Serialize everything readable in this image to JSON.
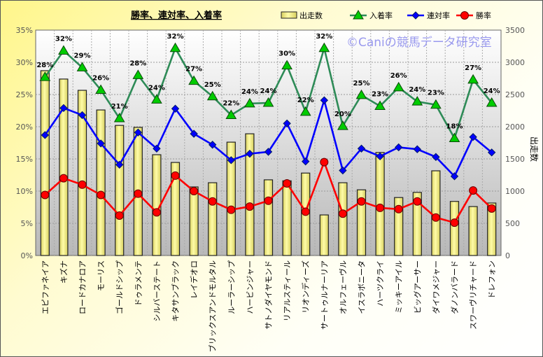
{
  "chart_data": {
    "type": "bar+line",
    "title": "勝率、連対率、入着率",
    "watermark": "©Caniの競馬データ研究室",
    "categories": [
      "エピファネイア",
      "キズナ",
      "ロードカナロア",
      "モーリス",
      "ゴールドシップ",
      "ドゥラメンテ",
      "シルバーステート",
      "キタサンブラック",
      "レイデオロ",
      "ブリックスアンドモルタル",
      "ルーラーシップ",
      "ハービンジャー",
      "サトノダイヤモンド",
      "リアルスティール",
      "リオンディーズ",
      "サートゥルナーリア",
      "オルフェーヴル",
      "イスラボニータ",
      "ハーツクライ",
      "ミッキーアイル",
      "ビッグアーサー",
      "ダイワメジャー",
      "ダノンバラード",
      "スワーヴリチャード",
      "ドレフォン"
    ],
    "y_left": {
      "label": "",
      "range": [
        0,
        35
      ],
      "ticks": [
        "0%",
        "5%",
        "10%",
        "15%",
        "20%",
        "25%",
        "30%",
        "35%"
      ]
    },
    "y_right": {
      "label": "出走数",
      "range": [
        0,
        3500
      ],
      "ticks": [
        "0",
        "500",
        "1000",
        "1500",
        "2000",
        "2500",
        "3000",
        "3500"
      ]
    },
    "legend": [
      "出走数",
      "入着率",
      "連対率",
      "勝率"
    ],
    "legend_position": "top-right",
    "grid": true,
    "series": [
      {
        "name": "出走数",
        "type": "bar",
        "axis": "right",
        "color": "#f5f08a",
        "values": [
          2870,
          2740,
          2565,
          2260,
          2020,
          1990,
          1565,
          1445,
          1065,
          1130,
          1760,
          1890,
          1175,
          1160,
          1280,
          630,
          1130,
          1020,
          1600,
          900,
          980,
          1315,
          840,
          760,
          815
        ]
      },
      {
        "name": "入着率",
        "type": "line",
        "axis": "left",
        "color": "#2e8b57",
        "marker": "triangle",
        "marker_color": "#00cc00",
        "values": [
          27.7,
          31.8,
          29.2,
          25.7,
          21.3,
          28.0,
          24.2,
          32.2,
          27.1,
          24.7,
          21.8,
          23.6,
          23.7,
          29.5,
          22.3,
          32.2,
          20.1,
          24.9,
          23.2,
          26.1,
          23.9,
          23.4,
          18.2,
          27.3,
          23.7
        ],
        "labels": [
          "28%",
          "32%",
          "29%",
          "26%",
          "21%",
          "28%",
          "24%",
          "32%",
          "27%",
          "25%",
          "22%",
          "24%",
          "24%",
          "30%",
          "22%",
          "32%",
          "20%",
          "25%",
          "23%",
          "26%",
          "24%",
          "23%",
          "18%",
          "27%",
          "24%"
        ]
      },
      {
        "name": "連対率",
        "type": "line",
        "axis": "left",
        "color": "#0000ff",
        "marker": "diamond",
        "values": [
          18.7,
          22.9,
          21.8,
          17.4,
          14.1,
          19.1,
          16.6,
          22.8,
          18.9,
          17.2,
          14.8,
          15.8,
          16.1,
          20.5,
          14.6,
          24.1,
          13.2,
          16.6,
          15.4,
          16.8,
          16.5,
          15.3,
          12.3,
          18.4,
          16.0
        ]
      },
      {
        "name": "勝率",
        "type": "line",
        "axis": "left",
        "color": "#ff0000",
        "marker": "circle",
        "values": [
          9.4,
          12.0,
          11.0,
          9.4,
          6.2,
          9.6,
          6.7,
          12.4,
          10.0,
          8.4,
          7.1,
          7.6,
          8.5,
          11.2,
          6.8,
          14.5,
          6.5,
          8.4,
          7.4,
          7.2,
          8.4,
          5.9,
          5.1,
          10.1,
          7.3
        ]
      }
    ]
  }
}
